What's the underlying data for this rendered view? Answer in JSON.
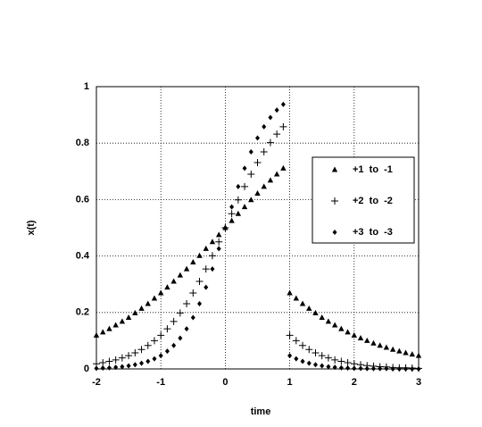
{
  "chart_data": {
    "type": "scatter",
    "xlabel": "time",
    "ylabel": "x(t)",
    "x": [
      -2,
      -1.9,
      -1.8,
      -1.7,
      -1.6,
      -1.5,
      -1.4,
      -1.3,
      -1.2,
      -1.1,
      -1,
      -0.9,
      -0.8,
      -0.7,
      -0.6,
      -0.5,
      -0.4,
      -0.3,
      -0.2,
      -0.1,
      0,
      0.1,
      0.2,
      0.3,
      0.4,
      0.5,
      0.6,
      0.7,
      0.8,
      0.9,
      1,
      1.1,
      1.2,
      1.3,
      1.4,
      1.5,
      1.6,
      1.7,
      1.8,
      1.9,
      2,
      2.1,
      2.2,
      2.3,
      2.4,
      2.5,
      2.6,
      2.7,
      2.8,
      2.9,
      3
    ],
    "series": [
      {
        "name": "+1  to  -1",
        "color": "#000000",
        "marker": "triangle",
        "values": [
          0.119,
          0.13,
          0.142,
          0.155,
          0.168,
          0.182,
          0.198,
          0.214,
          0.231,
          0.25,
          0.269,
          0.289,
          0.31,
          0.332,
          0.354,
          0.378,
          0.401,
          0.426,
          0.45,
          0.475,
          0.5,
          0.525,
          0.55,
          0.574,
          0.599,
          0.622,
          0.646,
          0.668,
          0.69,
          0.711,
          0.269,
          0.25,
          0.231,
          0.214,
          0.198,
          0.182,
          0.168,
          0.155,
          0.142,
          0.13,
          0.119,
          0.109,
          0.1,
          0.091,
          0.083,
          0.076,
          0.069,
          0.063,
          0.057,
          0.052,
          0.047
        ]
      },
      {
        "name": "+2  to  -2",
        "color": "#000000",
        "marker": "plus",
        "values": [
          0.018,
          0.022,
          0.027,
          0.032,
          0.039,
          0.047,
          0.057,
          0.069,
          0.083,
          0.1,
          0.119,
          0.142,
          0.168,
          0.198,
          0.231,
          0.269,
          0.31,
          0.354,
          0.401,
          0.45,
          0.5,
          0.55,
          0.599,
          0.646,
          0.69,
          0.731,
          0.769,
          0.802,
          0.832,
          0.858,
          0.119,
          0.1,
          0.083,
          0.069,
          0.057,
          0.047,
          0.039,
          0.032,
          0.027,
          0.022,
          0.018,
          0.015,
          0.012,
          0.01,
          0.008,
          0.007,
          0.005,
          0.004,
          0.004,
          0.003,
          0.002
        ]
      },
      {
        "name": "+3  to  -3",
        "color": "#000000",
        "marker": "diamond",
        "values": [
          0.002,
          0.003,
          0.004,
          0.006,
          0.008,
          0.011,
          0.015,
          0.02,
          0.027,
          0.036,
          0.047,
          0.063,
          0.083,
          0.109,
          0.142,
          0.182,
          0.231,
          0.289,
          0.354,
          0.426,
          0.5,
          0.574,
          0.646,
          0.711,
          0.769,
          0.818,
          0.858,
          0.891,
          0.917,
          0.937,
          0.047,
          0.036,
          0.027,
          0.02,
          0.015,
          0.011,
          0.008,
          0.006,
          0.004,
          0.003,
          0.002,
          0.002,
          0.001,
          0.001,
          0.001,
          0.001,
          0,
          0,
          0,
          0,
          0
        ]
      }
    ],
    "xlim": [
      -2,
      3
    ],
    "xticks": [
      -2,
      -1,
      0,
      1,
      2,
      3
    ],
    "ylim": [
      0,
      1
    ],
    "yticks": [
      0,
      0.2,
      0.4,
      0.6,
      0.8,
      1
    ],
    "grid": true,
    "legend": "right"
  }
}
